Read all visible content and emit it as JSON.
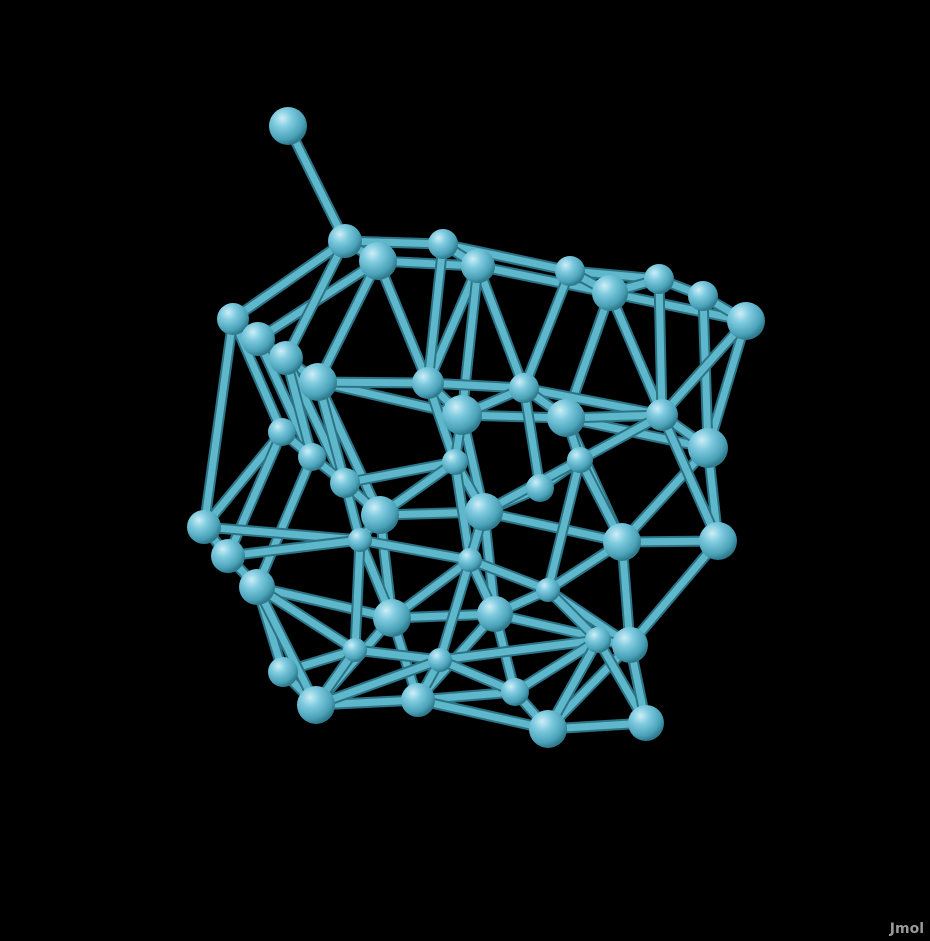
{
  "viewer": {
    "background": "#000000",
    "atom_color": "#5fb7cc",
    "bond_color": "#5fb7cc",
    "watermark": "Jmol"
  }
}
